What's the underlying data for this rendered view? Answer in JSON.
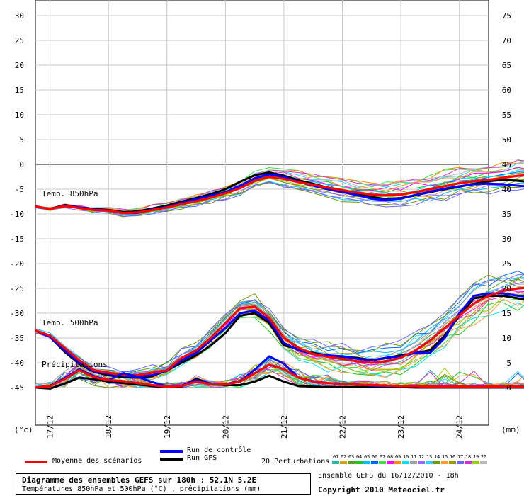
{
  "chart_data": {
    "type": "line",
    "title": "Diagramme des ensembles GEFS sur 180h : 52.1N 5.2E",
    "subtitle": "Températures 850hPa et 500hPa (°C) , précipitations (mm)",
    "left_axis": {
      "unit": "(°c)",
      "ticks": [
        30,
        25,
        20,
        15,
        10,
        5,
        0,
        -5,
        -10,
        -15,
        -20,
        -25,
        -30,
        -35,
        -40,
        -45
      ],
      "range": [
        -50,
        30
      ]
    },
    "right_axis": {
      "unit": "(mm)",
      "ticks": [
        75,
        70,
        65,
        60,
        55,
        50,
        45,
        40,
        35,
        30,
        25,
        20,
        15,
        10,
        5,
        0
      ]
    },
    "date_labels": [
      "17/12",
      "18/12",
      "19/12",
      "20/12",
      "21/12",
      "22/12",
      "23/12",
      "24/12"
    ],
    "x_start_hour": 0,
    "x_end_hour": 186,
    "hour_step": 6,
    "panel_labels": {
      "t850": "Temp. 850hPa",
      "t500": "Temp. 500hPa",
      "precip": "Précipitations"
    },
    "t850": {
      "mean": [
        -8.5,
        -9,
        -8.4,
        -8.8,
        -9.2,
        -9.3,
        -9.8,
        -9.7,
        -9.2,
        -8.7,
        -8,
        -7.4,
        -6.7,
        -5.8,
        -4.8,
        -3.3,
        -2.5,
        -2.9,
        -3.6,
        -4.1,
        -4.7,
        -5.2,
        -5.7,
        -6.1,
        -6.2,
        -6.1,
        -5.6,
        -5,
        -4.4,
        -3.8,
        -3.4,
        -3.1,
        -2.7,
        -2.3,
        -2.1,
        -2.3,
        -2.6,
        -2.8,
        -2.6,
        -2.5
      ],
      "control": [
        -8.5,
        -9,
        -8.3,
        -8.7,
        -9.1,
        -9.3,
        -9.8,
        -9.8,
        -9.1,
        -8.6,
        -7.8,
        -7,
        -6.3,
        -5.6,
        -4.3,
        -2.8,
        -2,
        -2.5,
        -3.5,
        -4.3,
        -5,
        -5.6,
        -6.2,
        -6.9,
        -7.2,
        -6.9,
        -6.2,
        -5.5,
        -4.9,
        -4.4,
        -4,
        -3.9,
        -4,
        -4.3,
        -4.5,
        -4.7,
        -5,
        -5.4,
        -6,
        -5.9
      ],
      "gfs": [
        -8.5,
        -9,
        -8.2,
        -8.7,
        -9,
        -9.2,
        -9.6,
        -9.5,
        -8.9,
        -8.3,
        -7.5,
        -6.8,
        -6,
        -5,
        -3.5,
        -2.2,
        -1.6,
        -2.3,
        -3.2,
        -3.9,
        -4.7,
        -5.3,
        -5.8,
        -6.6,
        -7,
        -6.8,
        -6.2,
        -5.6,
        -5,
        -4.5,
        -3.9,
        -3.4,
        -3.1,
        -3.3,
        -3.6,
        -3.9,
        -4.2,
        -4.4,
        -4.6,
        -4.4
      ]
    },
    "t500": {
      "mean": [
        -33.5,
        -34.5,
        -37,
        -39.5,
        -41.5,
        -42,
        -42.5,
        -42.5,
        -42,
        -41.5,
        -39,
        -37.5,
        -35,
        -32,
        -29,
        -28.7,
        -31,
        -35,
        -37,
        -38.2,
        -38.8,
        -39.2,
        -39.7,
        -40,
        -39.7,
        -39,
        -37.5,
        -35.5,
        -33,
        -30.5,
        -28,
        -26.5,
        -25.5,
        -25,
        -24.8,
        -24.5,
        -24,
        -23,
        -22.2,
        -22
      ],
      "control": [
        -33.5,
        -34.8,
        -37.5,
        -40,
        -41.7,
        -42.2,
        -42.6,
        -42.8,
        -42.5,
        -41.6,
        -39.5,
        -38,
        -35.5,
        -33,
        -30,
        -29.5,
        -31.5,
        -36,
        -37.5,
        -38.2,
        -38.5,
        -38.7,
        -39.2,
        -39.5,
        -39,
        -38.7,
        -38,
        -38,
        -35,
        -30,
        -26.5,
        -26,
        -26,
        -26.5,
        -26.8,
        -27,
        -27.5,
        -28,
        -26,
        -23.5
      ],
      "gfs": [
        -33.5,
        -34.8,
        -37.8,
        -40.2,
        -41.8,
        -42.5,
        -42.9,
        -43,
        -42.7,
        -41.5,
        -40,
        -38.5,
        -36.5,
        -34,
        -30.5,
        -30,
        -32,
        -36.5,
        -37.2,
        -38,
        -38.5,
        -38.8,
        -39,
        -39.5,
        -39,
        -38.5,
        -38,
        -37.5,
        -34.5,
        -30.5,
        -27,
        -26.5,
        -26.5,
        -27,
        -27.5,
        -27.7,
        -28,
        -27,
        -24.8,
        -23
      ]
    },
    "precip_mm": {
      "mean": [
        0,
        0.3,
        1.7,
        3.5,
        2.1,
        1.5,
        1.3,
        0.9,
        0.5,
        0.2,
        0.3,
        1.2,
        0.7,
        0.6,
        1.2,
        2.9,
        4.6,
        3.7,
        2,
        1.2,
        0.9,
        0.7,
        0.6,
        0.5,
        0.4,
        0.3,
        0.3,
        0.2,
        0.2,
        0.2,
        0.2,
        0.2,
        0.2,
        0.2,
        0.2,
        0.3,
        0.3,
        0.3,
        0.3,
        0.3
      ],
      "control": [
        0,
        0.4,
        1.9,
        3.7,
        2.3,
        1.5,
        2.9,
        2.2,
        1.1,
        0.3,
        0.4,
        1.5,
        0.8,
        0.7,
        1.3,
        3.6,
        6.3,
        4.8,
        2,
        1.3,
        0.9,
        0.8,
        0.6,
        0.4,
        0.3,
        0.3,
        0.3,
        0.2,
        0.2,
        0.2,
        0.2,
        0.2,
        0.2,
        0.2,
        0.2,
        0.2,
        0.2,
        0.2,
        0.2,
        0.2
      ],
      "gfs": [
        0,
        -0.2,
        0.8,
        2,
        1.7,
        1.2,
        0.9,
        0.6,
        0.3,
        0.1,
        0.2,
        1.8,
        0.7,
        0.5,
        0.5,
        1.2,
        2.4,
        1.2,
        0.3,
        0.2,
        0.1,
        0.1,
        0.1,
        0.1,
        0.1,
        0.1,
        0,
        0,
        0,
        0,
        0,
        0,
        0,
        0,
        0,
        0,
        0,
        0,
        0,
        0
      ]
    },
    "series_colors": {
      "mean": "#ff0000",
      "control": "#0000ff",
      "gfs": "#000000"
    },
    "perturbation_colors": [
      "#2bb7a9",
      "#d8a020",
      "#5a9b2a",
      "#1fc71f",
      "#00c0ff",
      "#0066ff",
      "#40e040",
      "#ff00ff",
      "#ff8c00",
      "#00e0ff",
      "#a0a0a0",
      "#9966ff",
      "#33ccff",
      "#669900",
      "#ff9933",
      "#999900",
      "#6666ff",
      "#cc33cc",
      "#99cc00",
      "#bbbbbb"
    ]
  },
  "legend": {
    "mean_label": "Moyenne des scénarios",
    "control_label": "Run de contrôle",
    "gfs_label": "Run GFS",
    "perturbations_label": "20 Perturbations",
    "perturbation_numbers": [
      "01",
      "02",
      "03",
      "04",
      "05",
      "06",
      "07",
      "08",
      "09",
      "10",
      "11",
      "12",
      "13",
      "14",
      "15",
      "16",
      "17",
      "18",
      "19",
      "20"
    ]
  },
  "footer": {
    "ensemble_text": "Ensemble GEFS du 16/12/2010 - 18h",
    "copyright": "Copyright 2010 Meteociel.fr"
  }
}
